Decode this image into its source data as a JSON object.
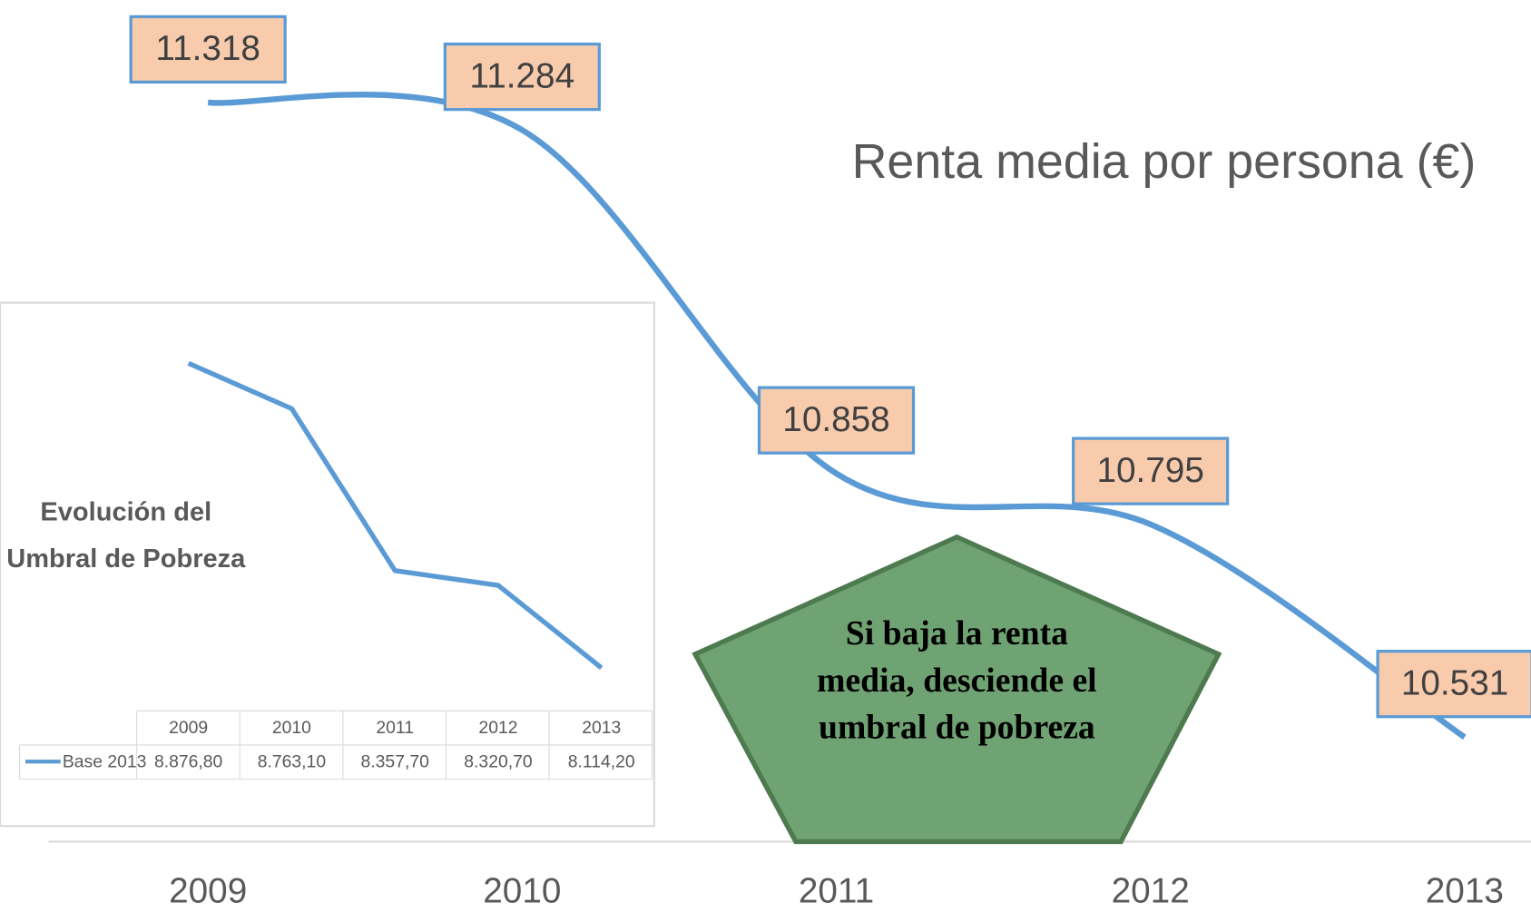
{
  "chart_data": [
    {
      "type": "line",
      "title": "Renta media por persona (€)",
      "categories": [
        "2009",
        "2010",
        "2011",
        "2012",
        "2013"
      ],
      "values": [
        11318,
        11284,
        10858,
        10795,
        10531
      ],
      "value_labels": [
        "11.318",
        "11.284",
        "10.858",
        "10.795",
        "10.531"
      ],
      "color": "#5b9bd5",
      "annotation": "Si baja la renta media, desciende el umbral de pobreza"
    },
    {
      "type": "line",
      "title": "Evolución del Umbral de Pobreza",
      "categories": [
        "2009",
        "2010",
        "2011",
        "2012",
        "2013"
      ],
      "series": [
        {
          "name": "Base 2013",
          "color": "#5b9bd5",
          "values": [
            8876.8,
            8763.1,
            8357.7,
            8320.7,
            8114.2
          ],
          "value_labels": [
            "8.876,80",
            "8.763,10",
            "8.357,70",
            "8.320,70",
            "8.114,20"
          ]
        }
      ]
    }
  ]
}
